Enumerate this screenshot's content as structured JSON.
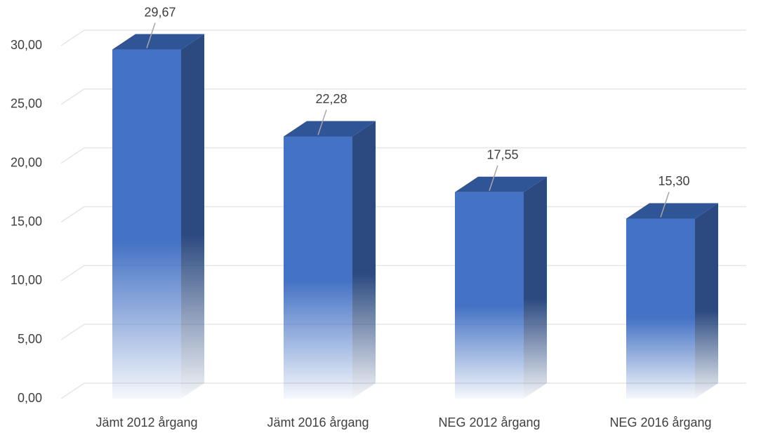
{
  "chart_data": {
    "type": "bar",
    "categories": [
      "Jämt 2012 årgang",
      "Jämt 2016 årgang",
      "NEG 2012 årgang",
      "NEG 2016 årgang"
    ],
    "values": [
      29.67,
      22.28,
      17.55,
      15.3
    ],
    "value_labels": [
      "29,67",
      "22,28",
      "17,55",
      "15,30"
    ],
    "color": "#4472c4",
    "ylim": [
      0,
      30
    ],
    "yticks": [
      {
        "value": 0,
        "label": "0,00"
      },
      {
        "value": 5,
        "label": "5,00"
      },
      {
        "value": 10,
        "label": "10,00"
      },
      {
        "value": 15,
        "label": "15,00"
      },
      {
        "value": 20,
        "label": "20,00"
      },
      {
        "value": 25,
        "label": "25,00"
      },
      {
        "value": 30,
        "label": "30,00"
      }
    ],
    "grid": true
  }
}
